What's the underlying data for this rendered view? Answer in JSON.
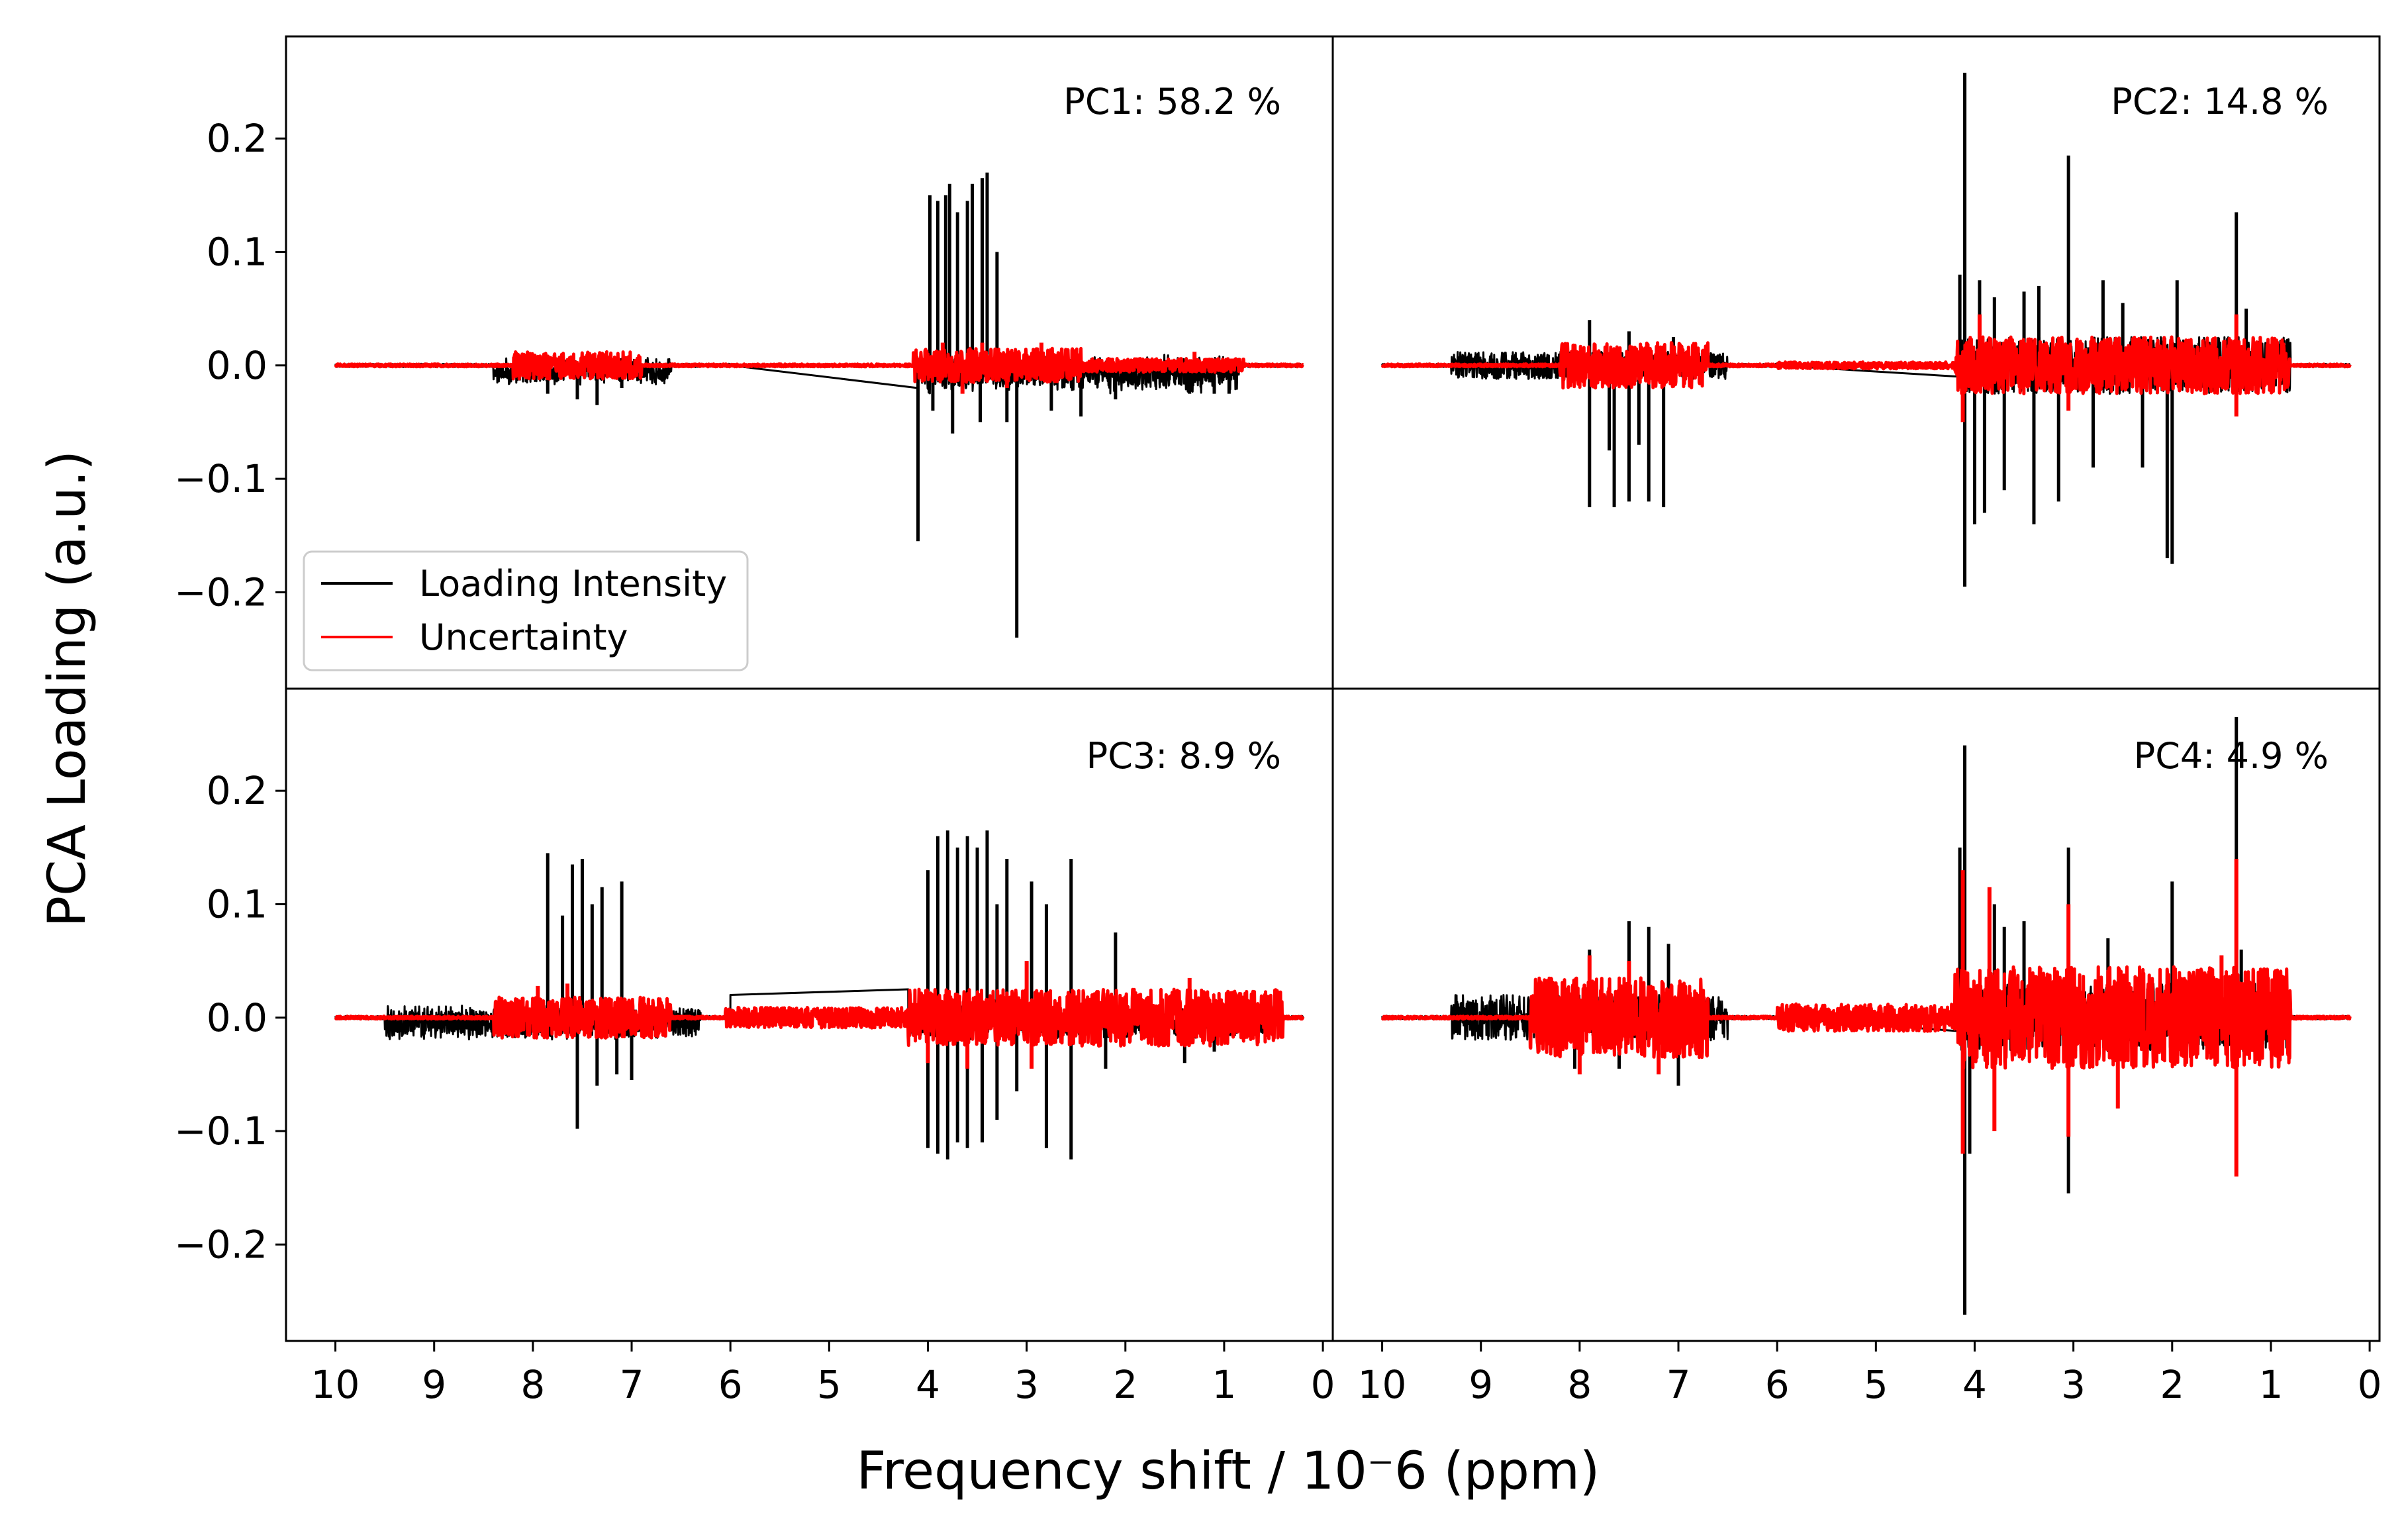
{
  "chart_data": {
    "type": "line",
    "layout": "2x2 grid, shared axes",
    "xlabel": "Frequency shift / 10⁻6 (ppm)",
    "ylabel": "PCA Loading (a.u.)",
    "xlim": [
      10.5,
      -0.1
    ],
    "ylim": [
      -0.285,
      0.29
    ],
    "x_ticks": [
      10,
      9,
      8,
      7,
      6,
      5,
      4,
      3,
      2,
      1,
      0
    ],
    "y_ticks": [
      0.2,
      0.1,
      0.0,
      -0.1,
      -0.2
    ],
    "y_tick_labels": [
      "0.2",
      "0.1",
      "0.0",
      "−0.1",
      "−0.2"
    ],
    "legend": {
      "placement": "lower-left of top-left panel",
      "entries": [
        {
          "label": "Loading Intensity",
          "color": "#000000"
        },
        {
          "label": "Uncertainty",
          "color": "#ff0000"
        }
      ]
    },
    "series_colors": {
      "loading": "#000000",
      "uncertainty": "#ff0000"
    },
    "panels": [
      {
        "name": "PC1",
        "label": "PC1: 58.2 %",
        "variance_percent": 58.2,
        "gap_ppm": [
          6.0,
          4.1
        ],
        "gap_line_y": [
          0.0,
          -0.02
        ],
        "loading_spikes": [
          [
            3.98,
            0.15
          ],
          [
            3.9,
            0.145
          ],
          [
            3.82,
            0.15
          ],
          [
            3.78,
            0.16
          ],
          [
            3.7,
            0.135
          ],
          [
            3.6,
            0.145
          ],
          [
            3.55,
            0.16
          ],
          [
            3.45,
            0.165
          ],
          [
            3.4,
            0.17
          ],
          [
            3.3,
            0.1
          ],
          [
            4.1,
            -0.155
          ],
          [
            3.1,
            -0.24
          ],
          [
            3.95,
            -0.04
          ],
          [
            3.75,
            -0.06
          ],
          [
            3.47,
            -0.05
          ],
          [
            3.2,
            -0.05
          ],
          [
            2.75,
            -0.04
          ],
          [
            2.45,
            -0.045
          ],
          [
            2.1,
            -0.03
          ],
          [
            1.35,
            -0.025
          ],
          [
            1.1,
            -0.025
          ],
          [
            0.95,
            -0.025
          ],
          [
            7.85,
            -0.025
          ],
          [
            7.55,
            -0.03
          ],
          [
            7.35,
            -0.035
          ],
          [
            7.1,
            -0.02
          ]
        ],
        "noise_regions": [
          {
            "start": 8.4,
            "end": 6.6,
            "amp": 0.008,
            "bias": -0.01
          },
          {
            "start": 4.1,
            "end": 0.85,
            "amp": 0.01,
            "bias": -0.015
          }
        ],
        "uncertainty_spikes": [
          [
            3.85,
            0.02
          ],
          [
            3.45,
            0.02
          ],
          [
            3.2,
            -0.02
          ],
          [
            2.85,
            0.02
          ],
          [
            2.75,
            0.015
          ],
          [
            1.3,
            0.012
          ],
          [
            3.65,
            -0.025
          ]
        ],
        "uncertainty_regions": [
          {
            "start": 8.2,
            "end": 6.9,
            "amp": 0.012
          },
          {
            "start": 4.15,
            "end": 2.45,
            "amp": 0.015
          },
          {
            "start": 2.45,
            "end": 0.8,
            "amp": 0.006
          }
        ]
      },
      {
        "name": "PC2",
        "label": "PC2: 14.8 %",
        "variance_percent": 14.8,
        "gap_ppm": [
          6.0,
          4.15
        ],
        "gap_line_y": [
          0.0,
          -0.01
        ],
        "loading_spikes": [
          [
            4.1,
            0.258
          ],
          [
            4.15,
            0.08
          ],
          [
            3.95,
            0.075
          ],
          [
            3.8,
            0.06
          ],
          [
            3.5,
            0.065
          ],
          [
            3.35,
            0.07
          ],
          [
            3.05,
            0.185
          ],
          [
            2.7,
            0.075
          ],
          [
            2.5,
            0.055
          ],
          [
            1.95,
            0.075
          ],
          [
            1.35,
            0.135
          ],
          [
            1.25,
            0.05
          ],
          [
            4.1,
            -0.195
          ],
          [
            4.0,
            -0.14
          ],
          [
            3.9,
            -0.13
          ],
          [
            3.7,
            -0.11
          ],
          [
            3.4,
            -0.14
          ],
          [
            3.15,
            -0.12
          ],
          [
            2.8,
            -0.09
          ],
          [
            2.3,
            -0.09
          ],
          [
            2.05,
            -0.17
          ],
          [
            2.0,
            -0.175
          ],
          [
            7.9,
            -0.125
          ],
          [
            7.65,
            -0.125
          ],
          [
            7.5,
            -0.12
          ],
          [
            7.3,
            -0.12
          ],
          [
            7.15,
            -0.125
          ],
          [
            7.7,
            -0.075
          ],
          [
            7.4,
            -0.07
          ],
          [
            7.9,
            0.04
          ],
          [
            7.5,
            0.03
          ],
          [
            7.05,
            0.025
          ],
          [
            8.3,
            -0.012
          ]
        ],
        "noise_regions": [
          {
            "start": 9.3,
            "end": 6.5,
            "amp": 0.012,
            "bias": 0.0
          },
          {
            "start": 4.2,
            "end": 0.8,
            "amp": 0.025,
            "bias": 0.0
          }
        ],
        "uncertainty_spikes": [
          [
            4.12,
            -0.05
          ],
          [
            3.95,
            0.045
          ],
          [
            3.05,
            -0.04
          ],
          [
            1.35,
            0.045
          ],
          [
            1.35,
            -0.045
          ],
          [
            1.8,
            -0.02
          ]
        ],
        "uncertainty_regions": [
          {
            "start": 8.2,
            "end": 6.7,
            "amp": 0.02
          },
          {
            "start": 6.0,
            "end": 4.15,
            "amp": 0.003
          },
          {
            "start": 4.2,
            "end": 0.8,
            "amp": 0.025
          }
        ]
      },
      {
        "name": "PC3",
        "label": "PC3:  8.9 %",
        "variance_percent": 8.9,
        "gap_ppm": [
          6.0,
          4.2
        ],
        "gap_line_y": [
          0.02,
          0.025
        ],
        "loading_spikes": [
          [
            7.85,
            0.145
          ],
          [
            7.6,
            0.135
          ],
          [
            7.5,
            0.14
          ],
          [
            7.3,
            0.115
          ],
          [
            7.1,
            0.12
          ],
          [
            7.7,
            0.09
          ],
          [
            7.4,
            0.1
          ],
          [
            7.55,
            -0.098
          ],
          [
            7.35,
            -0.06
          ],
          [
            7.15,
            -0.05
          ],
          [
            7.0,
            -0.055
          ],
          [
            4.0,
            0.13
          ],
          [
            3.9,
            0.16
          ],
          [
            3.8,
            0.165
          ],
          [
            3.7,
            0.15
          ],
          [
            3.6,
            0.16
          ],
          [
            3.5,
            0.15
          ],
          [
            3.4,
            0.165
          ],
          [
            3.3,
            0.1
          ],
          [
            3.2,
            0.14
          ],
          [
            2.95,
            0.12
          ],
          [
            2.8,
            0.1
          ],
          [
            2.55,
            0.14
          ],
          [
            2.1,
            0.075
          ],
          [
            4.0,
            -0.115
          ],
          [
            3.9,
            -0.12
          ],
          [
            3.8,
            -0.125
          ],
          [
            3.7,
            -0.11
          ],
          [
            3.6,
            -0.115
          ],
          [
            3.45,
            -0.11
          ],
          [
            3.3,
            -0.09
          ],
          [
            3.1,
            -0.065
          ],
          [
            2.8,
            -0.115
          ],
          [
            2.55,
            -0.125
          ],
          [
            2.2,
            -0.045
          ],
          [
            1.4,
            -0.04
          ],
          [
            1.1,
            -0.03
          ]
        ],
        "noise_regions": [
          {
            "start": 9.5,
            "end": 6.3,
            "amp": 0.012,
            "bias": -0.008
          },
          {
            "start": 4.2,
            "end": 0.4,
            "amp": 0.012,
            "bias": -0.008
          }
        ],
        "uncertainty_spikes": [
          [
            7.95,
            0.028
          ],
          [
            7.65,
            0.03
          ],
          [
            3.0,
            0.05
          ],
          [
            2.95,
            -0.045
          ],
          [
            1.35,
            0.035
          ],
          [
            4.0,
            -0.04
          ],
          [
            3.6,
            -0.045
          ]
        ],
        "uncertainty_regions": [
          {
            "start": 8.4,
            "end": 6.6,
            "amp": 0.018
          },
          {
            "start": 6.05,
            "end": 4.2,
            "amp": 0.009
          },
          {
            "start": 4.2,
            "end": 0.4,
            "amp": 0.025
          }
        ]
      },
      {
        "name": "PC4",
        "label": "PC4: 4.9 %",
        "variance_percent": 4.9,
        "gap_ppm": [
          6.0,
          4.15
        ],
        "gap_line_y": [
          0.0,
          -0.012
        ],
        "loading_spikes": [
          [
            4.1,
            0.24
          ],
          [
            4.15,
            0.15
          ],
          [
            4.1,
            -0.262
          ],
          [
            4.05,
            -0.12
          ],
          [
            3.8,
            0.1
          ],
          [
            3.7,
            0.08
          ],
          [
            3.5,
            0.085
          ],
          [
            3.05,
            0.15
          ],
          [
            2.65,
            0.07
          ],
          [
            2.0,
            0.12
          ],
          [
            1.35,
            0.265
          ],
          [
            1.3,
            0.06
          ],
          [
            3.8,
            -0.08
          ],
          [
            3.05,
            -0.155
          ],
          [
            2.55,
            -0.08
          ],
          [
            1.35,
            -0.08
          ],
          [
            7.5,
            0.085
          ],
          [
            7.3,
            0.08
          ],
          [
            7.1,
            0.065
          ],
          [
            7.9,
            0.06
          ],
          [
            8.05,
            -0.045
          ],
          [
            7.6,
            -0.045
          ],
          [
            7.0,
            -0.06
          ],
          [
            9.0,
            -0.015
          ]
        ],
        "noise_regions": [
          {
            "start": 9.3,
            "end": 6.5,
            "amp": 0.02,
            "bias": 0.0
          },
          {
            "start": 4.2,
            "end": 0.8,
            "amp": 0.03,
            "bias": 0.0
          }
        ],
        "uncertainty_spikes": [
          [
            4.12,
            0.13
          ],
          [
            4.12,
            -0.12
          ],
          [
            3.85,
            0.115
          ],
          [
            3.8,
            -0.1
          ],
          [
            3.05,
            -0.105
          ],
          [
            3.05,
            0.1
          ],
          [
            2.55,
            -0.08
          ],
          [
            1.35,
            0.14
          ],
          [
            1.35,
            -0.14
          ],
          [
            1.5,
            0.055
          ],
          [
            7.5,
            0.05
          ],
          [
            7.2,
            -0.05
          ],
          [
            7.9,
            0.055
          ],
          [
            8.0,
            -0.05
          ]
        ],
        "uncertainty_regions": [
          {
            "start": 8.5,
            "end": 6.7,
            "amp": 0.035
          },
          {
            "start": 6.0,
            "end": 4.15,
            "amp": 0.012
          },
          {
            "start": 4.2,
            "end": 0.8,
            "amp": 0.045
          }
        ]
      }
    ]
  }
}
